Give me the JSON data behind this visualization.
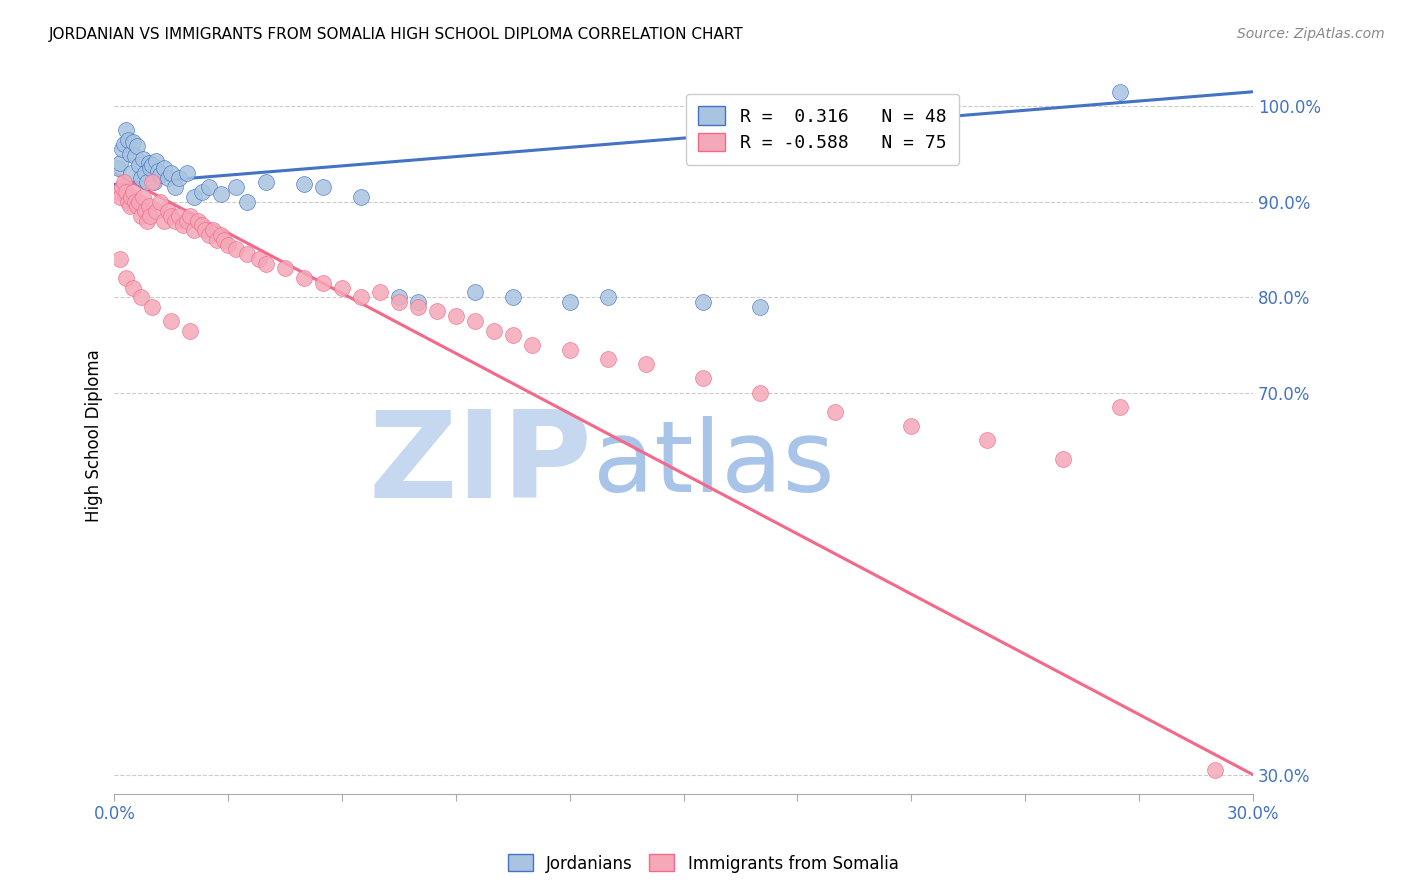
{
  "title": "JORDANIAN VS IMMIGRANTS FROM SOMALIA HIGH SCHOOL DIPLOMA CORRELATION CHART",
  "source": "Source: ZipAtlas.com",
  "ylabel": "High School Diploma",
  "xlim": [
    0.0,
    30.0
  ],
  "ylim": [
    28.0,
    103.0
  ],
  "yticks": [
    30.0,
    70.0,
    80.0,
    90.0,
    100.0
  ],
  "xticks": [
    0,
    3,
    6,
    9,
    12,
    15,
    18,
    21,
    24,
    27,
    30
  ],
  "blue_R": 0.316,
  "blue_N": 48,
  "pink_R": -0.588,
  "pink_N": 75,
  "blue_color": "#a8c4e0",
  "pink_color": "#f4a8b8",
  "blue_line_color": "#4472C4",
  "pink_line_color": "#F4688A",
  "legend_label_blue": "Jordanians",
  "legend_label_pink": "Immigrants from Somalia",
  "watermark_zip": "ZIP",
  "watermark_atlas": "atlas",
  "watermark_color_zip": "#c5d8f0",
  "watermark_color_atlas": "#a8c4e8",
  "blue_scatter_x": [
    0.1,
    0.15,
    0.2,
    0.25,
    0.3,
    0.35,
    0.4,
    0.45,
    0.5,
    0.55,
    0.6,
    0.65,
    0.7,
    0.75,
    0.8,
    0.85,
    0.9,
    0.95,
    1.0,
    1.05,
    1.1,
    1.15,
    1.2,
    1.3,
    1.4,
    1.5,
    1.6,
    1.7,
    1.9,
    2.1,
    2.3,
    2.5,
    2.8,
    3.2,
    3.5,
    4.0,
    5.0,
    5.5,
    6.5,
    7.5,
    8.0,
    9.5,
    10.5,
    12.0,
    13.0,
    15.5,
    17.0,
    26.5
  ],
  "blue_scatter_y": [
    93.5,
    94.0,
    95.5,
    96.0,
    97.5,
    96.5,
    95.0,
    93.0,
    96.2,
    94.8,
    95.8,
    93.8,
    92.5,
    94.5,
    93.0,
    92.0,
    94.0,
    93.5,
    93.8,
    92.0,
    94.2,
    93.2,
    92.8,
    93.5,
    92.5,
    93.0,
    91.5,
    92.5,
    93.0,
    90.5,
    91.0,
    91.5,
    90.8,
    91.5,
    90.0,
    92.0,
    91.8,
    91.5,
    90.5,
    80.0,
    79.5,
    80.5,
    80.0,
    79.5,
    80.0,
    79.5,
    79.0,
    101.5
  ],
  "pink_scatter_x": [
    0.1,
    0.15,
    0.2,
    0.25,
    0.3,
    0.35,
    0.4,
    0.45,
    0.5,
    0.55,
    0.6,
    0.65,
    0.7,
    0.75,
    0.8,
    0.85,
    0.9,
    0.95,
    1.0,
    1.1,
    1.2,
    1.3,
    1.4,
    1.5,
    1.6,
    1.7,
    1.8,
    1.9,
    2.0,
    2.1,
    2.2,
    2.3,
    2.4,
    2.5,
    2.6,
    2.7,
    2.8,
    2.9,
    3.0,
    3.2,
    3.5,
    3.8,
    4.0,
    4.5,
    5.0,
    5.5,
    6.0,
    6.5,
    7.0,
    7.5,
    8.0,
    8.5,
    9.0,
    9.5,
    10.0,
    10.5,
    11.0,
    12.0,
    13.0,
    14.0,
    15.5,
    17.0,
    19.0,
    21.0,
    23.0,
    25.0,
    26.5,
    29.0,
    0.15,
    0.3,
    0.5,
    0.7,
    1.0,
    1.5,
    2.0
  ],
  "pink_scatter_y": [
    91.0,
    90.5,
    91.5,
    92.0,
    91.0,
    90.0,
    89.5,
    90.5,
    91.0,
    90.0,
    89.5,
    90.0,
    88.5,
    90.5,
    89.0,
    88.0,
    89.5,
    88.5,
    92.0,
    89.0,
    90.0,
    88.0,
    89.0,
    88.5,
    88.0,
    88.5,
    87.5,
    88.0,
    88.5,
    87.0,
    88.0,
    87.5,
    87.0,
    86.5,
    87.0,
    86.0,
    86.5,
    86.0,
    85.5,
    85.0,
    84.5,
    84.0,
    83.5,
    83.0,
    82.0,
    81.5,
    81.0,
    80.0,
    80.5,
    79.5,
    79.0,
    78.5,
    78.0,
    77.5,
    76.5,
    76.0,
    75.0,
    74.5,
    73.5,
    73.0,
    71.5,
    70.0,
    68.0,
    66.5,
    65.0,
    63.0,
    68.5,
    30.5,
    84.0,
    82.0,
    81.0,
    80.0,
    79.0,
    77.5,
    76.5
  ]
}
